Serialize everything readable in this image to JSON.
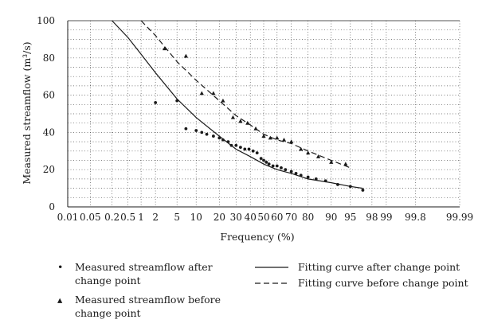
{
  "chart_data": {
    "type": "scatter",
    "xlabel": "Frequency (%)",
    "ylabel": "Measured streamflow (m³/s)",
    "x_scale": "probability",
    "xlim": [
      0.01,
      99.99
    ],
    "ylim": [
      0,
      100
    ],
    "x_ticks": [
      0.01,
      0.05,
      0.2,
      0.5,
      1,
      2,
      5,
      10,
      20,
      30,
      40,
      50,
      60,
      70,
      80,
      90,
      95,
      98,
      99,
      99.8,
      99.99
    ],
    "y_ticks": [
      0,
      20,
      40,
      60,
      80,
      100
    ],
    "grid": "dotted",
    "series": [
      {
        "name": "Measured streamflow after change point",
        "marker": "dot",
        "points": [
          [
            2,
            56
          ],
          [
            5,
            57
          ],
          [
            7,
            42
          ],
          [
            10,
            41
          ],
          [
            12,
            40
          ],
          [
            14,
            39
          ],
          [
            17,
            38
          ],
          [
            20,
            37
          ],
          [
            22,
            36
          ],
          [
            25,
            35
          ],
          [
            27,
            33
          ],
          [
            30,
            33
          ],
          [
            33,
            32
          ],
          [
            36,
            31
          ],
          [
            39,
            31
          ],
          [
            42,
            30
          ],
          [
            45,
            29
          ],
          [
            48,
            26
          ],
          [
            50,
            25
          ],
          [
            52,
            24
          ],
          [
            54,
            23
          ],
          [
            57,
            22
          ],
          [
            60,
            22
          ],
          [
            63,
            21
          ],
          [
            66,
            20
          ],
          [
            70,
            19
          ],
          [
            73,
            18
          ],
          [
            76,
            17
          ],
          [
            80,
            16
          ],
          [
            84,
            15
          ],
          [
            88,
            14
          ],
          [
            92,
            12
          ],
          [
            95,
            11
          ],
          [
            97,
            9
          ]
        ]
      },
      {
        "name": "Measured streamflow before change point",
        "marker": "triangle",
        "points": [
          [
            3,
            85
          ],
          [
            7,
            81
          ],
          [
            12,
            61
          ],
          [
            17,
            61
          ],
          [
            22,
            57
          ],
          [
            28,
            48
          ],
          [
            33,
            46
          ],
          [
            38,
            45
          ],
          [
            44,
            42
          ],
          [
            50,
            38
          ],
          [
            55,
            37
          ],
          [
            60,
            37
          ],
          [
            65,
            36
          ],
          [
            70,
            35
          ],
          [
            76,
            31
          ],
          [
            80,
            29
          ],
          [
            85,
            27
          ],
          [
            90,
            24
          ],
          [
            94,
            23
          ]
        ]
      },
      {
        "name": "Fitting curve after change point",
        "style": "solid",
        "points": [
          [
            0.2,
            100
          ],
          [
            0.5,
            91
          ],
          [
            1,
            82
          ],
          [
            2,
            72
          ],
          [
            5,
            58
          ],
          [
            10,
            48
          ],
          [
            20,
            38
          ],
          [
            30,
            31
          ],
          [
            40,
            27
          ],
          [
            50,
            23
          ],
          [
            60,
            20
          ],
          [
            70,
            18
          ],
          [
            80,
            15
          ],
          [
            90,
            13
          ],
          [
            95,
            11
          ],
          [
            97,
            10
          ]
        ]
      },
      {
        "name": "Fitting curve before change point",
        "style": "dashed",
        "points": [
          [
            1,
            100
          ],
          [
            2,
            92
          ],
          [
            5,
            78
          ],
          [
            10,
            68
          ],
          [
            20,
            57
          ],
          [
            30,
            49
          ],
          [
            40,
            44
          ],
          [
            50,
            39
          ],
          [
            60,
            36
          ],
          [
            70,
            34
          ],
          [
            80,
            30
          ],
          [
            90,
            25
          ],
          [
            95,
            21
          ]
        ]
      }
    ]
  },
  "legend": {
    "items": [
      {
        "marker": "•",
        "label_line1": "Measured streamflow after",
        "label_line2": "change point"
      },
      {
        "marker": "▴",
        "label_line1": "Measured streamflow before",
        "label_line2": "change point"
      },
      {
        "label_line1": "Fitting curve after change point"
      },
      {
        "label_line1": "Fitting curve before change point"
      }
    ]
  }
}
